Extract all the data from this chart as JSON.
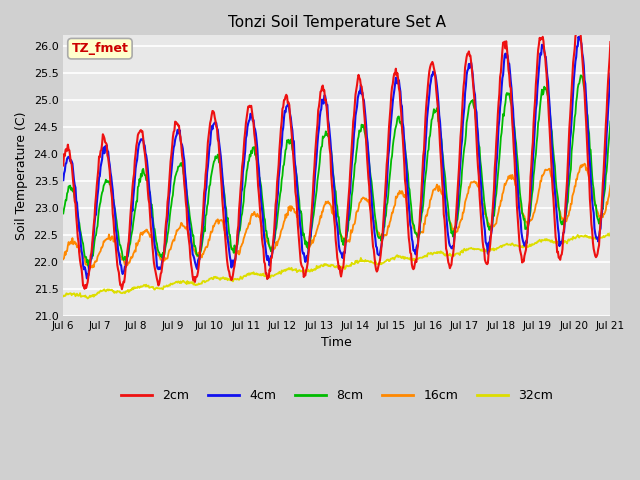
{
  "title": "Tonzi Soil Temperature Set A",
  "xlabel": "Time",
  "ylabel": "Soil Temperature (C)",
  "annotation_text": "TZ_fmet",
  "annotation_color": "#cc0000",
  "annotation_bg": "#ffffcc",
  "annotation_border": "#aaaaaa",
  "ylim": [
    21.0,
    26.2
  ],
  "series_colors": {
    "2cm": "#ee1111",
    "4cm": "#1111ee",
    "8cm": "#00bb00",
    "16cm": "#ff8800",
    "32cm": "#dddd00"
  },
  "series_names": [
    "2cm",
    "4cm",
    "8cm",
    "16cm",
    "32cm"
  ],
  "fig_bg_color": "#d0d0d0",
  "plot_bg_color": "#e8e8e8",
  "grid_color": "white",
  "n_points": 720,
  "start_day": 6,
  "end_day": 21
}
